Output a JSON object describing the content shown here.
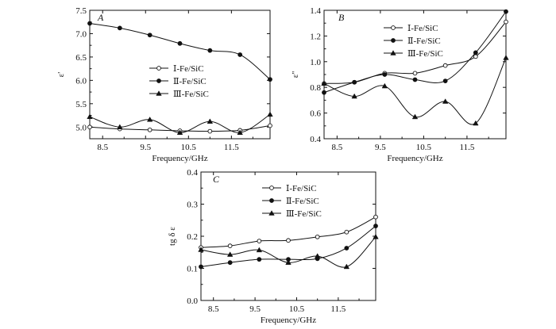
{
  "chart_data": [
    {
      "panel": "A",
      "type": "line",
      "xlabel": "Frequency/GHz",
      "ylabel": "ε'",
      "xlim": [
        8.2,
        12.4
      ],
      "ylim": [
        4.75,
        7.5
      ],
      "xticks": [
        "8.5",
        "9.5",
        "10.5",
        "11.5"
      ],
      "yticks": [
        "5.0",
        "5.5",
        "6.0",
        "6.5",
        "7.0",
        "7.5"
      ],
      "legend_position": "center-right",
      "series": [
        {
          "name": "Ⅰ-Fe/SiC",
          "marker": "open-circle",
          "x": [
            8.2,
            8.9,
            9.6,
            10.3,
            11.0,
            11.7,
            12.4
          ],
          "y": [
            5.0,
            4.96,
            4.94,
            4.92,
            4.91,
            4.93,
            5.03
          ]
        },
        {
          "name": "Ⅱ-Fe/SiC",
          "marker": "filled-circle",
          "x": [
            8.2,
            8.9,
            9.6,
            10.3,
            11.0,
            11.7,
            12.4
          ],
          "y": [
            7.22,
            7.12,
            6.97,
            6.79,
            6.64,
            6.55,
            6.02
          ]
        },
        {
          "name": "Ⅲ-Fe/SiC",
          "marker": "filled-triangle",
          "x": [
            8.2,
            8.9,
            9.6,
            10.3,
            11.0,
            11.7,
            12.4
          ],
          "y": [
            5.22,
            5.0,
            5.16,
            4.88,
            5.12,
            4.88,
            5.27
          ]
        }
      ]
    },
    {
      "panel": "B",
      "type": "line",
      "xlabel": "Frequency/GHz",
      "ylabel": "ε''",
      "xlim": [
        8.2,
        12.4
      ],
      "ylim": [
        0.4,
        1.4
      ],
      "xticks": [
        "8.5",
        "9.5",
        "10.5",
        "11.5"
      ],
      "yticks": [
        "0.4",
        "0.6",
        "0.8",
        "1.0",
        "1.2",
        "1.4"
      ],
      "legend_position": "top-center",
      "series": [
        {
          "name": "Ⅰ-Fe/SiC",
          "marker": "open-circle",
          "x": [
            8.2,
            8.9,
            9.6,
            10.3,
            11.0,
            11.7,
            12.4
          ],
          "y": [
            0.83,
            0.84,
            0.91,
            0.91,
            0.97,
            1.04,
            1.31
          ]
        },
        {
          "name": "Ⅱ-Fe/SiC",
          "marker": "filled-circle",
          "x": [
            8.2,
            8.9,
            9.6,
            10.3,
            11.0,
            11.7,
            12.4
          ],
          "y": [
            0.76,
            0.84,
            0.9,
            0.86,
            0.85,
            1.07,
            1.39
          ]
        },
        {
          "name": "Ⅲ-Fe/SiC",
          "marker": "filled-triangle",
          "x": [
            8.2,
            8.9,
            9.6,
            10.3,
            11.0,
            11.7,
            12.4
          ],
          "y": [
            0.83,
            0.73,
            0.81,
            0.57,
            0.69,
            0.52,
            1.03
          ]
        }
      ]
    },
    {
      "panel": "C",
      "type": "line",
      "xlabel": "Frequency/GHz",
      "ylabel": "tg δ ε",
      "xlim": [
        8.2,
        12.4
      ],
      "ylim": [
        0.0,
        0.4
      ],
      "xticks": [
        "8.5",
        "9.5",
        "10.5",
        "11.5"
      ],
      "yticks": [
        "0.0",
        "0.1",
        "0.2",
        "0.3",
        "0.4"
      ],
      "legend_position": "top-center",
      "series": [
        {
          "name": "Ⅰ-Fe/SiC",
          "marker": "open-circle",
          "x": [
            8.2,
            8.9,
            9.6,
            10.3,
            11.0,
            11.7,
            12.4
          ],
          "y": [
            0.165,
            0.17,
            0.185,
            0.187,
            0.198,
            0.213,
            0.26
          ]
        },
        {
          "name": "Ⅱ-Fe/SiC",
          "marker": "filled-circle",
          "x": [
            8.2,
            8.9,
            9.6,
            10.3,
            11.0,
            11.7,
            12.4
          ],
          "y": [
            0.105,
            0.118,
            0.128,
            0.128,
            0.13,
            0.163,
            0.232
          ]
        },
        {
          "name": "Ⅲ-Fe/SiC",
          "marker": "filled-triangle",
          "x": [
            8.2,
            8.9,
            9.6,
            10.3,
            11.0,
            11.7,
            12.4
          ],
          "y": [
            0.158,
            0.143,
            0.157,
            0.118,
            0.138,
            0.105,
            0.198
          ]
        }
      ]
    }
  ]
}
